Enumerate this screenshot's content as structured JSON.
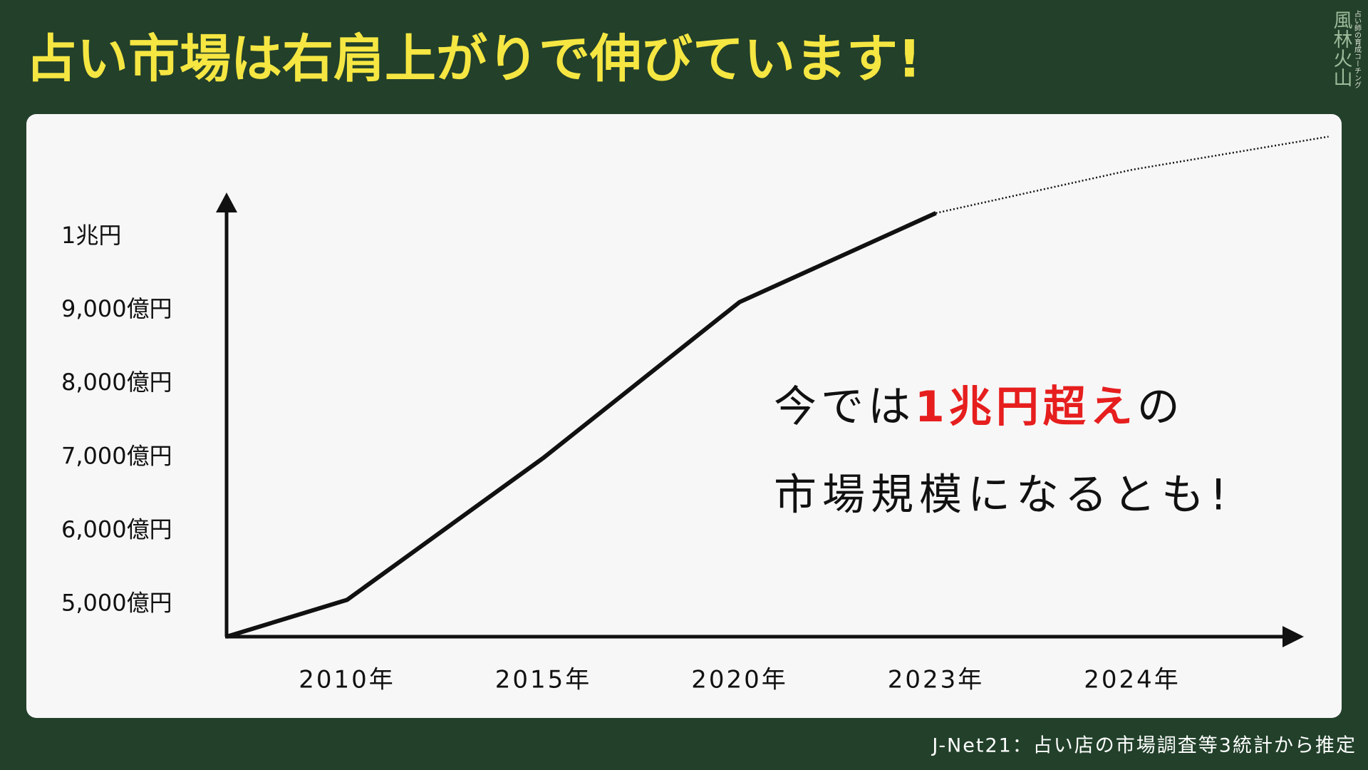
{
  "chart_data": {
    "type": "line",
    "title": "占い市場は右肩上がりで伸びています!",
    "logo": "風林火山",
    "logo_sub": "占い師の育成コーチング",
    "source": "J-Net21：占い店の市場調査等3統計から推定",
    "categories": [
      null,
      "2010年",
      "2015年",
      "2020年",
      "2023年",
      "2024年",
      null
    ],
    "series": [
      {
        "color": "#111111",
        "style": "solid",
        "values": [
          4560,
          5060,
          6990,
          9110,
          10320,
          null,
          null
        ]
      },
      {
        "color": "#111111",
        "style": "dotted",
        "values": [
          null,
          null,
          null,
          null,
          10320,
          10910,
          11360
        ]
      }
    ],
    "ylim": [
      4560,
      10600
    ],
    "yticks": [
      {
        "value": 5000,
        "label": "5,000億円"
      },
      {
        "value": 6000,
        "label": "6,000億円"
      },
      {
        "value": 7000,
        "label": "7,000億円"
      },
      {
        "value": 8000,
        "label": "8,000億円"
      },
      {
        "value": 9000,
        "label": "9,000億円"
      },
      {
        "value": 10000,
        "label": "1兆円"
      }
    ],
    "grid": false,
    "annotation_lines": [
      [
        "今では",
        "1兆円超え",
        "の"
      ],
      [
        "市場規模になるとも!"
      ]
    ]
  }
}
